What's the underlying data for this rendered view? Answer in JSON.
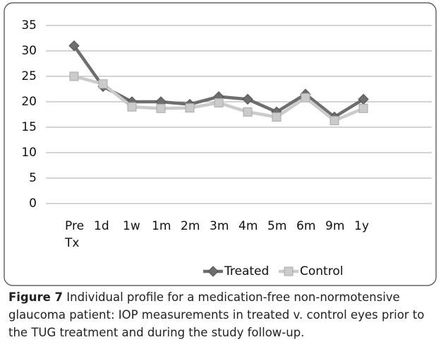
{
  "chart_data": {
    "type": "line",
    "categories": [
      "Pre Tx",
      "1d",
      "1w",
      "1m",
      "2m",
      "3m",
      "4m",
      "5m",
      "6m",
      "9m",
      "1y"
    ],
    "series": [
      {
        "name": "Treated",
        "color": "#6e6e6e",
        "marker": "diamond",
        "values": [
          31,
          23,
          20,
          20,
          19.5,
          21,
          20.5,
          18,
          21.5,
          17,
          20.5
        ]
      },
      {
        "name": "Control",
        "color": "#cbcbcb",
        "marker": "square",
        "values": [
          25,
          23.5,
          19,
          18.7,
          18.8,
          19.8,
          18,
          17,
          20.8,
          16.3,
          18.7
        ]
      }
    ],
    "ylim": [
      0,
      35
    ],
    "yticks": [
      0,
      5,
      10,
      15,
      20,
      25,
      30,
      35
    ],
    "grid": true,
    "legend": "bottom",
    "caption_label": "Figure 7",
    "caption": "Individual profile for a medication-free non-normotensive glaucoma patient: IOP measurements in treated v. control eyes prior to the TUG treatment and during the study follow-up."
  }
}
